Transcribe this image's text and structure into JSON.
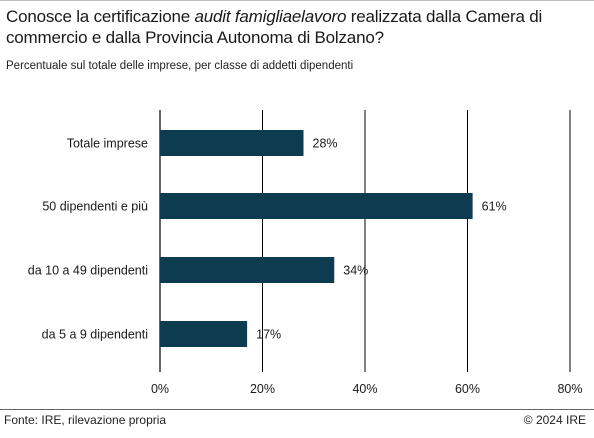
{
  "header": {
    "title_pre": "Conosce la certificazione ",
    "title_em": "audit famigliaelavoro",
    "title_post": " realizzata dalla Camera di commercio e dalla Provincia Autonoma di Bolzano?",
    "subtitle": "Percentuale sul totale delle imprese, per classe di addetti dipendenti"
  },
  "footer": {
    "source": "Fonte: IRE, rilevazione propria",
    "copyright": "© 2024 IRE"
  },
  "colors": {
    "bar": "#0d3b50",
    "grid": "#000000",
    "text": "#1a1a1a"
  },
  "chart_data": {
    "type": "bar",
    "orientation": "horizontal",
    "categories": [
      "Totale imprese",
      "50 dipendenti e più",
      "da 10 a 49 dipendenti",
      "da 5 a 9 dipendenti"
    ],
    "values": [
      28,
      61,
      34,
      17
    ],
    "value_labels": [
      "28%",
      "61%",
      "34%",
      "17%"
    ],
    "xlim": [
      0,
      80
    ],
    "xticks": [
      0,
      20,
      40,
      60,
      80
    ],
    "xtick_labels": [
      "0%",
      "20%",
      "40%",
      "60%",
      "80%"
    ],
    "grid": true,
    "unit": "%"
  }
}
